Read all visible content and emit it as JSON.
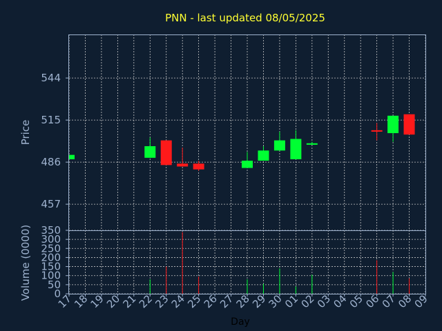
{
  "chart_data": {
    "type": "candlestick",
    "title": "PNN - last updated 08/05/2025",
    "xlabel": "Day",
    "ylabel_price": "Price",
    "ylabel_volume": "Volume (0000)",
    "x_ticks": [
      "17",
      "18",
      "19",
      "20",
      "21",
      "22",
      "23",
      "24",
      "25",
      "26",
      "27",
      "28",
      "29",
      "30",
      "01",
      "02",
      "03",
      "04",
      "05",
      "06",
      "07",
      "08",
      "09"
    ],
    "price_ticks": [
      457,
      486,
      515,
      544
    ],
    "price_ylim": [
      439,
      574
    ],
    "volume_ticks": [
      0,
      50,
      100,
      150,
      200,
      250,
      300,
      350
    ],
    "volume_ylim": [
      0,
      350
    ],
    "grid": true,
    "colors": {
      "background": "#0f1e30",
      "grid": "#c8c8c8",
      "up": "#00ff33",
      "down": "#ff1a1a",
      "text": "#9fb3cf",
      "title": "#ffff33",
      "frame": "#9fb3cf"
    },
    "candles": [
      {
        "day": "17",
        "open": 488,
        "high": 491,
        "low": 488,
        "close": 491
      },
      {
        "day": "22",
        "open": 489,
        "high": 503,
        "low": 489,
        "close": 497
      },
      {
        "day": "23",
        "open": 501,
        "high": 501,
        "low": 484,
        "close": 484
      },
      {
        "day": "24",
        "open": 485,
        "high": 496,
        "low": 483,
        "close": 483
      },
      {
        "day": "25",
        "open": 485,
        "high": 487,
        "low": 480,
        "close": 481
      },
      {
        "day": "28",
        "open": 482,
        "high": 493,
        "low": 482,
        "close": 487
      },
      {
        "day": "29",
        "open": 487,
        "high": 497,
        "low": 487,
        "close": 494
      },
      {
        "day": "30",
        "open": 494,
        "high": 507,
        "low": 494,
        "close": 501
      },
      {
        "day": "01",
        "open": 488,
        "high": 508,
        "low": 488,
        "close": 502
      },
      {
        "day": "02",
        "open": 498,
        "high": 500,
        "low": 498,
        "close": 499
      },
      {
        "day": "06",
        "open": 508,
        "high": 513,
        "low": 501,
        "close": 507
      },
      {
        "day": "07",
        "open": 506,
        "high": 518,
        "low": 500,
        "close": 518
      },
      {
        "day": "08",
        "open": 519,
        "high": 519,
        "low": 505,
        "close": 505
      }
    ],
    "volume": [
      {
        "day": "22",
        "value": 80,
        "direction": "up"
      },
      {
        "day": "23",
        "value": 150,
        "direction": "down"
      },
      {
        "day": "24",
        "value": 340,
        "direction": "down"
      },
      {
        "day": "25",
        "value": 95,
        "direction": "down"
      },
      {
        "day": "28",
        "value": 80,
        "direction": "up"
      },
      {
        "day": "29",
        "value": 55,
        "direction": "up"
      },
      {
        "day": "30",
        "value": 140,
        "direction": "up"
      },
      {
        "day": "01",
        "value": 40,
        "direction": "up"
      },
      {
        "day": "02",
        "value": 105,
        "direction": "up"
      },
      {
        "day": "06",
        "value": 185,
        "direction": "down"
      },
      {
        "day": "07",
        "value": 120,
        "direction": "up"
      },
      {
        "day": "08",
        "value": 85,
        "direction": "down"
      }
    ]
  }
}
